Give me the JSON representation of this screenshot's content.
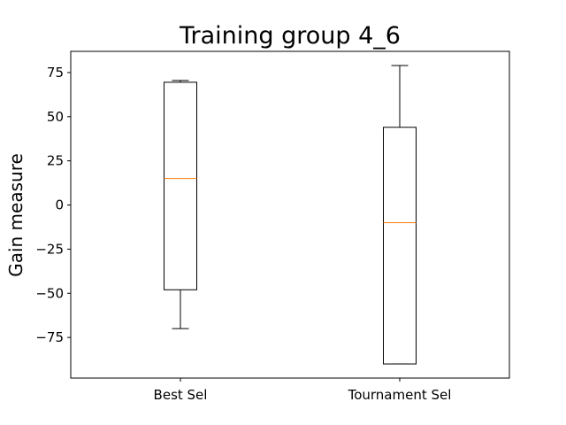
{
  "chart_data": {
    "type": "box",
    "title": "Training group 4_6",
    "xlabel": "",
    "ylabel": "Gain measure",
    "categories": [
      "Best Sel",
      "Tournament Sel"
    ],
    "boxes": [
      {
        "name": "Best Sel",
        "whisker_low": -70,
        "q1": -48,
        "median": 15,
        "q3": 69.5,
        "whisker_high": 70.5
      },
      {
        "name": "Tournament Sel",
        "whisker_low": -90,
        "q1": -90,
        "median": -10,
        "q3": 44,
        "whisker_high": 79
      }
    ],
    "yticks": [
      -75,
      -50,
      -25,
      0,
      25,
      50,
      75
    ],
    "ylim": [
      -98,
      87
    ],
    "grid": false,
    "colors": {
      "box": "#000000",
      "median": "#ff7f0e"
    }
  }
}
